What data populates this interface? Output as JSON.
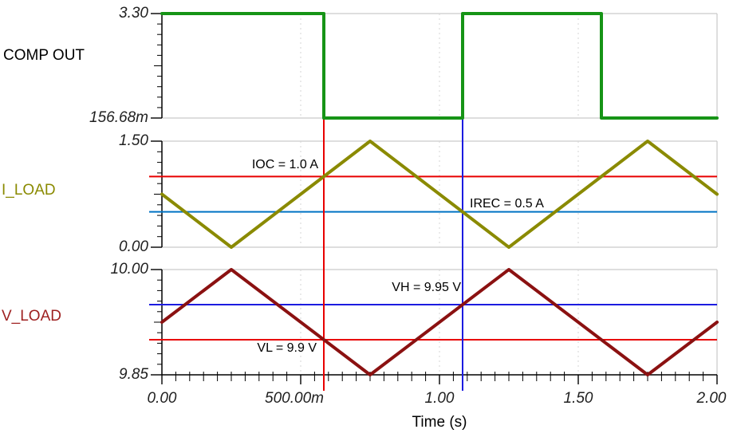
{
  "x_axis": {
    "label": "Time (s)",
    "range": [
      0,
      2
    ],
    "major_ticks": [
      {
        "t": 0,
        "label": "0.00"
      },
      {
        "t": 0.5,
        "label": "500.00m"
      },
      {
        "t": 1,
        "label": "1.00"
      },
      {
        "t": 1.5,
        "label": "1.50"
      },
      {
        "t": 2,
        "label": "2.00"
      }
    ],
    "minor_tick_step": 0.05,
    "dashed_gridlines_t": [
      0.5,
      1,
      1.5
    ]
  },
  "cursors": [
    {
      "name": "cursor-red",
      "t": 0.58333,
      "color": "#e80000"
    },
    {
      "name": "cursor-blue",
      "t": 1.08333,
      "color": "#1c1ce0"
    }
  ],
  "chart_data": [
    {
      "id": "comp_out",
      "type": "line",
      "title": "COMP OUT",
      "title_color": "#000000",
      "trace_color": "#169416",
      "ylim": [
        0.15668,
        3.3
      ],
      "ytick_labels": [
        "3.30",
        "156.68m"
      ],
      "points": [
        [
          0,
          3.3
        ],
        [
          0.58333,
          3.3
        ],
        [
          0.58333,
          0.15668
        ],
        [
          1.08333,
          0.15668
        ],
        [
          1.08333,
          3.3
        ],
        [
          1.58333,
          3.3
        ],
        [
          1.58333,
          0.15668
        ],
        [
          2,
          0.15668
        ]
      ],
      "ref_lines": []
    },
    {
      "id": "i_load",
      "type": "line",
      "title": "I_LOAD",
      "title_color": "#8a8a00",
      "trace_color": "#8a8a00",
      "ylim": [
        0.0,
        1.5
      ],
      "ytick_labels": [
        "1.50",
        "0.00"
      ],
      "points": [
        [
          0,
          0.75
        ],
        [
          0.25,
          0
        ],
        [
          0.75,
          1.5
        ],
        [
          1.25,
          0
        ],
        [
          1.75,
          1.5
        ],
        [
          2,
          0.75
        ]
      ],
      "ref_lines": [
        {
          "label": "IOC = 1.0 A",
          "value": 1.0,
          "color": "#e80000"
        },
        {
          "label": "IREC = 0.5 A",
          "value": 0.5,
          "color": "#0073c4"
        }
      ]
    },
    {
      "id": "v_load",
      "type": "line",
      "title": "V_LOAD",
      "title_color": "#9e2020",
      "trace_color": "#8b1111",
      "ylim": [
        9.85,
        10.0
      ],
      "ytick_labels": [
        "10.00",
        "9.85"
      ],
      "points": [
        [
          0,
          9.925
        ],
        [
          0.25,
          10.0
        ],
        [
          0.75,
          9.85
        ],
        [
          1.25,
          10.0
        ],
        [
          1.75,
          9.85
        ],
        [
          2,
          9.925
        ]
      ],
      "ref_lines": [
        {
          "label": "VH = 9.95 V",
          "value": 9.95,
          "color": "#1c1ce0"
        },
        {
          "label": "VL = 9.9 V",
          "value": 9.9,
          "color": "#e80000"
        }
      ]
    }
  ]
}
